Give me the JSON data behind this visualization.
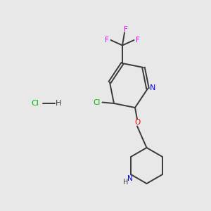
{
  "background_color": "#e8e8e8",
  "bond_color": "#3a3a3a",
  "nitrogen_color": "#0000ee",
  "oxygen_color": "#ee0000",
  "chlorine_color": "#00bb00",
  "fluorine_color": "#ee00ee",
  "fig_width": 3.0,
  "fig_height": 3.0,
  "dpi": 100,
  "xlim": [
    0,
    10
  ],
  "ylim": [
    0,
    10
  ]
}
